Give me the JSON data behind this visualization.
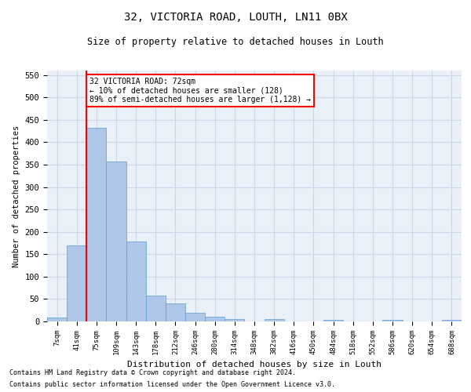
{
  "title1": "32, VICTORIA ROAD, LOUTH, LN11 0BX",
  "title2": "Size of property relative to detached houses in Louth",
  "xlabel": "Distribution of detached houses by size in Louth",
  "ylabel": "Number of detached properties",
  "bar_color": "#aec6e8",
  "bar_edge_color": "#5b9bd5",
  "grid_color": "#c8d8e8",
  "background_color": "#eaf0f8",
  "x_labels": [
    "7sqm",
    "41sqm",
    "75sqm",
    "109sqm",
    "143sqm",
    "178sqm",
    "212sqm",
    "246sqm",
    "280sqm",
    "314sqm",
    "348sqm",
    "382sqm",
    "416sqm",
    "450sqm",
    "484sqm",
    "518sqm",
    "552sqm",
    "586sqm",
    "620sqm",
    "654sqm",
    "688sqm"
  ],
  "bar_values": [
    8,
    170,
    432,
    357,
    178,
    57,
    40,
    20,
    10,
    6,
    0,
    5,
    0,
    0,
    4,
    0,
    0,
    4,
    0,
    0,
    4
  ],
  "ylim": [
    0,
    560
  ],
  "yticks": [
    0,
    50,
    100,
    150,
    200,
    250,
    300,
    350,
    400,
    450,
    500,
    550
  ],
  "annotation_line1": "32 VICTORIA ROAD: 72sqm",
  "annotation_line2": "← 10% of detached houses are smaller (128)",
  "annotation_line3": "89% of semi-detached houses are larger (1,128) →",
  "footnote1": "Contains HM Land Registry data © Crown copyright and database right 2024.",
  "footnote2": "Contains public sector information licensed under the Open Government Licence v3.0."
}
